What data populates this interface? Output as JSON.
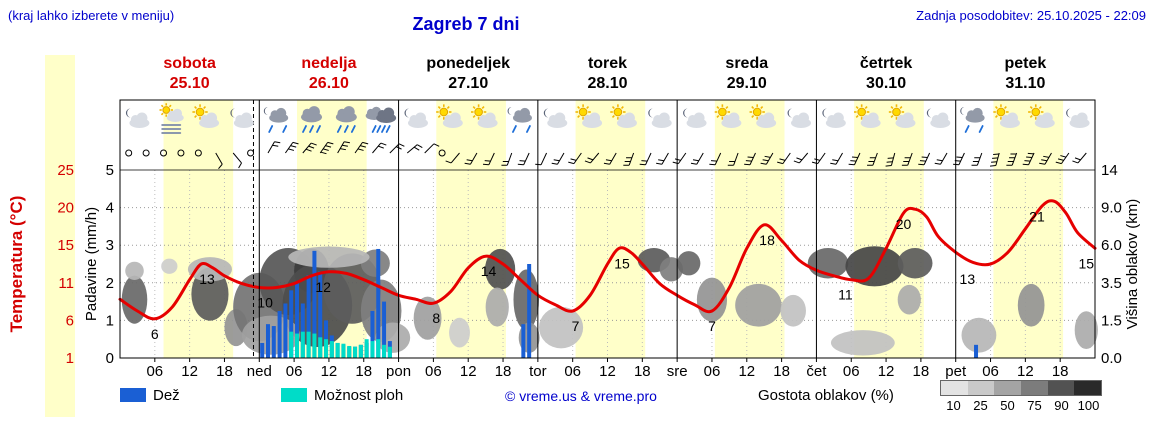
{
  "header": {
    "hint": "(kraj lahko izberete v meniju)",
    "title": "Zagreb 7 dni",
    "updated": "Zadnja posodobitev: 25.10.2025 - 22:09"
  },
  "axes": {
    "temperature_title": "Temperatura (°C)",
    "precip_title": "Padavine (mm/h)",
    "cloud_title": "Višina oblakov (km)"
  },
  "legend": {
    "rain": "Dež",
    "showers": "Možnost ploh",
    "credit": "© vreme.us & vreme.pro",
    "cloud_density": "Gostota oblakov (%)",
    "density_ticks": [
      "10",
      "25",
      "50",
      "75",
      "90",
      "100"
    ],
    "density_colors": [
      "#e3e3e3",
      "#c9c9c9",
      "#a4a4a4",
      "#7c7c7c",
      "#525252",
      "#2a2a2a"
    ]
  },
  "days": [
    {
      "name": "sobota",
      "date": "25.10",
      "red": true,
      "icons": [
        "moon-cloud",
        "sun-fog",
        "sun-cloud",
        "moon-cloud"
      ]
    },
    {
      "name": "nedelja",
      "date": "26.10",
      "red": true,
      "icons": [
        "moon-rain",
        "rain",
        "rain",
        "heavy-rain"
      ]
    },
    {
      "name": "ponedeljek",
      "date": "27.10",
      "red": false,
      "icons": [
        "moon-cloud",
        "sun-cloud",
        "sun-cloud",
        "moon-rain"
      ]
    },
    {
      "name": "torek",
      "date": "28.10",
      "red": false,
      "icons": [
        "moon-cloud",
        "sun-cloud",
        "sun-cloud",
        "moon-cloud"
      ]
    },
    {
      "name": "sreda",
      "date": "29.10",
      "red": false,
      "icons": [
        "moon-cloud",
        "sun-cloud",
        "sun-cloud",
        "moon-cloud"
      ]
    },
    {
      "name": "četrtek",
      "date": "30.10",
      "red": false,
      "icons": [
        "moon-cloud",
        "sun-cloud",
        "sun-cloud",
        "moon-cloud"
      ]
    },
    {
      "name": "petek",
      "date": "31.10",
      "red": false,
      "icons": [
        "moon-rain",
        "sun-cloud",
        "sun-cloud",
        "moon-cloud"
      ]
    }
  ],
  "chart_data": {
    "type": "meteogram",
    "x_hours_range": [
      0,
      168
    ],
    "x_tick_hours": [
      6,
      12,
      18
    ],
    "day_boundary_labels": [
      "ned",
      "pon",
      "tor",
      "sre",
      "čet",
      "pet"
    ],
    "now_line_hour": 23,
    "day_bands": {
      "color": "#ffffc9",
      "spans": [
        [
          7.5,
          19.5
        ],
        [
          30.5,
          42.5
        ],
        [
          54.5,
          66.5
        ],
        [
          78.5,
          90.5
        ],
        [
          102.5,
          114.5
        ],
        [
          126.5,
          138.5
        ],
        [
          150.5,
          162.5
        ]
      ]
    },
    "temperature": {
      "unit": "°C",
      "color": "#e60000",
      "axis_tick_labels": [
        "25",
        "20",
        "15",
        "11",
        "6",
        "1"
      ],
      "points": [
        [
          0,
          8.5
        ],
        [
          3,
          7
        ],
        [
          6,
          6
        ],
        [
          9,
          7.5
        ],
        [
          12,
          11
        ],
        [
          14,
          13
        ],
        [
          16,
          12.5
        ],
        [
          18,
          11.5
        ],
        [
          21,
          10.5
        ],
        [
          24,
          10
        ],
        [
          27,
          10
        ],
        [
          30,
          10.5
        ],
        [
          33,
          11.5
        ],
        [
          36,
          12
        ],
        [
          39,
          11.8
        ],
        [
          42,
          11
        ],
        [
          45,
          10
        ],
        [
          48,
          9
        ],
        [
          51,
          8.5
        ],
        [
          54,
          8
        ],
        [
          57,
          9.5
        ],
        [
          60,
          12.5
        ],
        [
          63,
          14
        ],
        [
          66,
          13
        ],
        [
          69,
          11
        ],
        [
          72,
          9
        ],
        [
          75,
          7.8
        ],
        [
          78,
          7
        ],
        [
          81,
          9
        ],
        [
          84,
          13
        ],
        [
          86,
          15
        ],
        [
          88,
          14.5
        ],
        [
          90,
          13
        ],
        [
          93,
          10.5
        ],
        [
          96,
          9
        ],
        [
          99,
          7.8
        ],
        [
          102,
          7
        ],
        [
          105,
          10
        ],
        [
          108,
          15
        ],
        [
          111,
          18
        ],
        [
          114,
          16
        ],
        [
          117,
          13.5
        ],
        [
          120,
          12.2
        ],
        [
          123,
          11.5
        ],
        [
          126,
          11
        ],
        [
          129,
          11.2
        ],
        [
          132,
          15
        ],
        [
          135,
          19.5
        ],
        [
          137,
          20
        ],
        [
          139,
          19
        ],
        [
          141,
          16.5
        ],
        [
          144,
          14.5
        ],
        [
          147,
          13.2
        ],
        [
          150,
          13
        ],
        [
          153,
          14.5
        ],
        [
          156,
          17.5
        ],
        [
          159,
          20.5
        ],
        [
          161,
          21
        ],
        [
          163,
          19.5
        ],
        [
          165,
          17
        ],
        [
          168,
          15
        ]
      ],
      "point_labels": [
        [
          6,
          6
        ],
        [
          15,
          13
        ],
        [
          25,
          10
        ],
        [
          35,
          12
        ],
        [
          54.5,
          8
        ],
        [
          63.5,
          14
        ],
        [
          78.5,
          7
        ],
        [
          86.5,
          15
        ],
        [
          102,
          7
        ],
        [
          111.5,
          18
        ],
        [
          125,
          11
        ],
        [
          135,
          20
        ],
        [
          146,
          13
        ],
        [
          158,
          21
        ],
        [
          166.5,
          15
        ]
      ]
    },
    "precip_axis": {
      "ticks": [
        "5",
        "4",
        "3",
        "2",
        "1",
        "0"
      ],
      "max": 5
    },
    "rain": {
      "label": "Dež",
      "unit": "mm/h",
      "color": "#1a5fd4",
      "bars": [
        [
          24,
          0.4
        ],
        [
          25,
          0.9
        ],
        [
          26,
          0.85
        ],
        [
          27,
          1.25
        ],
        [
          28,
          1.45
        ],
        [
          29,
          1.8
        ],
        [
          30,
          2.0
        ],
        [
          31,
          1.45
        ],
        [
          32,
          2.2
        ],
        [
          33,
          2.85
        ],
        [
          34,
          2.3
        ],
        [
          35,
          1.0
        ],
        [
          36,
          0.6
        ],
        [
          37,
          0.4
        ],
        [
          38,
          0.35
        ],
        [
          39,
          0.3
        ],
        [
          40,
          0.3
        ],
        [
          41,
          0.35
        ],
        [
          42,
          0.4
        ],
        [
          43,
          1.25
        ],
        [
          44,
          2.9
        ],
        [
          45,
          1.5
        ],
        [
          46,
          0.45
        ],
        [
          69,
          0.9
        ],
        [
          70,
          2.5
        ],
        [
          147,
          0.35
        ]
      ]
    },
    "showers": {
      "label": "Možnost ploh",
      "unit": "mm/h",
      "color": "#00dcc8",
      "bars": [
        [
          29,
          0.7
        ],
        [
          30,
          0.65
        ],
        [
          31,
          0.7
        ],
        [
          32,
          0.7
        ],
        [
          33,
          0.65
        ],
        [
          34,
          0.55
        ],
        [
          35,
          0.5
        ],
        [
          36,
          0.45
        ],
        [
          37,
          0.4
        ],
        [
          38,
          0.38
        ],
        [
          39,
          0.32
        ],
        [
          40,
          0.3
        ],
        [
          41,
          0.35
        ],
        [
          42,
          0.5
        ],
        [
          43,
          0.45
        ],
        [
          44,
          0.5
        ],
        [
          45,
          0.35
        ],
        [
          46,
          0.3
        ]
      ]
    },
    "cloud_height_axis": {
      "ticks": [
        "14",
        "9.0",
        "6.0",
        "3.5",
        "1.5",
        "0.0"
      ],
      "km_stops": [
        0,
        1.5,
        3.5,
        6,
        9,
        14
      ]
    },
    "clouds": [
      [
        2.5,
        2.6,
        2.2,
        1.3,
        0.8
      ],
      [
        2.5,
        4.3,
        1.6,
        0.6,
        0.45
      ],
      [
        8.5,
        4.6,
        1.4,
        0.5,
        0.35
      ],
      [
        15.5,
        2.9,
        3.2,
        1.5,
        0.85
      ],
      [
        15.5,
        4.4,
        3.8,
        0.8,
        0.45
      ],
      [
        20,
        1.2,
        2.0,
        0.8,
        0.6
      ],
      [
        24,
        2.2,
        4.5,
        1.7,
        0.75
      ],
      [
        29,
        3.6,
        5.0,
        2.0,
        0.88
      ],
      [
        33,
        4.3,
        3.0,
        1.4,
        1.0
      ],
      [
        34,
        2.3,
        6.0,
        2.1,
        0.92
      ],
      [
        40,
        3.2,
        5.0,
        2.0,
        0.85
      ],
      [
        44,
        4.8,
        2.5,
        0.9,
        0.7
      ],
      [
        45,
        2.0,
        3.5,
        1.5,
        0.7
      ],
      [
        36,
        5.2,
        7.0,
        0.7,
        0.45
      ],
      [
        26,
        0.9,
        5.0,
        0.8,
        0.55
      ],
      [
        47,
        0.8,
        3.0,
        0.6,
        0.5
      ],
      [
        53,
        1.6,
        2.4,
        1.0,
        0.55
      ],
      [
        58.5,
        1.0,
        1.8,
        0.6,
        0.35
      ],
      [
        65.5,
        4.4,
        2.6,
        1.3,
        0.9
      ],
      [
        65,
        2.2,
        2.0,
        1.0,
        0.5
      ],
      [
        70,
        2.6,
        2.2,
        1.6,
        0.8
      ],
      [
        70.5,
        0.8,
        1.8,
        0.6,
        0.6
      ],
      [
        76,
        1.2,
        3.8,
        0.9,
        0.4
      ],
      [
        92,
        5.0,
        2.8,
        0.8,
        0.85
      ],
      [
        95,
        4.4,
        2.0,
        0.8,
        0.7
      ],
      [
        98,
        4.8,
        2.0,
        0.8,
        0.8
      ],
      [
        102,
        2.6,
        2.6,
        1.2,
        0.6
      ],
      [
        110,
        2.3,
        4.0,
        1.1,
        0.55
      ],
      [
        116,
        2.0,
        2.2,
        0.8,
        0.4
      ],
      [
        122,
        4.8,
        3.5,
        1.0,
        0.8
      ],
      [
        130,
        4.6,
        5.0,
        1.3,
        0.95
      ],
      [
        137,
        4.8,
        3.0,
        1.0,
        0.85
      ],
      [
        128,
        0.6,
        5.5,
        0.5,
        0.4
      ],
      [
        136,
        2.6,
        2.0,
        0.8,
        0.5
      ],
      [
        148,
        0.9,
        3.0,
        0.7,
        0.45
      ],
      [
        157,
        2.3,
        2.3,
        1.1,
        0.6
      ],
      [
        166.5,
        1.1,
        2.0,
        0.8,
        0.5
      ]
    ],
    "wind_barbs_3h": [
      0,
      0,
      0,
      0,
      0,
      [
        300,
        5
      ],
      [
        310,
        5
      ],
      0,
      [
        60,
        10
      ],
      [
        55,
        15
      ],
      [
        50,
        15
      ],
      [
        55,
        20
      ],
      [
        60,
        15
      ],
      [
        55,
        15
      ],
      [
        50,
        10
      ],
      [
        45,
        10
      ],
      [
        40,
        10
      ],
      [
        45,
        5
      ],
      0,
      [
        230,
        5
      ],
      [
        240,
        10
      ],
      [
        245,
        10
      ],
      [
        250,
        10
      ],
      [
        245,
        10
      ],
      [
        245,
        5
      ],
      [
        240,
        10
      ],
      [
        235,
        10
      ],
      [
        230,
        10
      ],
      [
        240,
        10
      ],
      [
        250,
        15
      ],
      [
        245,
        10
      ],
      [
        240,
        10
      ],
      [
        235,
        10
      ],
      [
        240,
        10
      ],
      [
        245,
        10
      ],
      [
        250,
        10
      ],
      [
        245,
        15
      ],
      [
        240,
        15
      ],
      [
        235,
        10
      ],
      [
        230,
        10
      ],
      [
        235,
        10
      ],
      [
        240,
        10
      ],
      [
        245,
        15
      ],
      [
        250,
        15
      ],
      [
        255,
        15
      ],
      [
        250,
        15
      ],
      [
        245,
        15
      ],
      [
        240,
        10
      ],
      [
        245,
        15
      ],
      [
        250,
        15
      ],
      [
        255,
        20
      ],
      [
        250,
        20
      ],
      [
        245,
        20
      ],
      [
        240,
        15
      ],
      [
        235,
        15
      ],
      [
        230,
        10
      ]
    ]
  }
}
